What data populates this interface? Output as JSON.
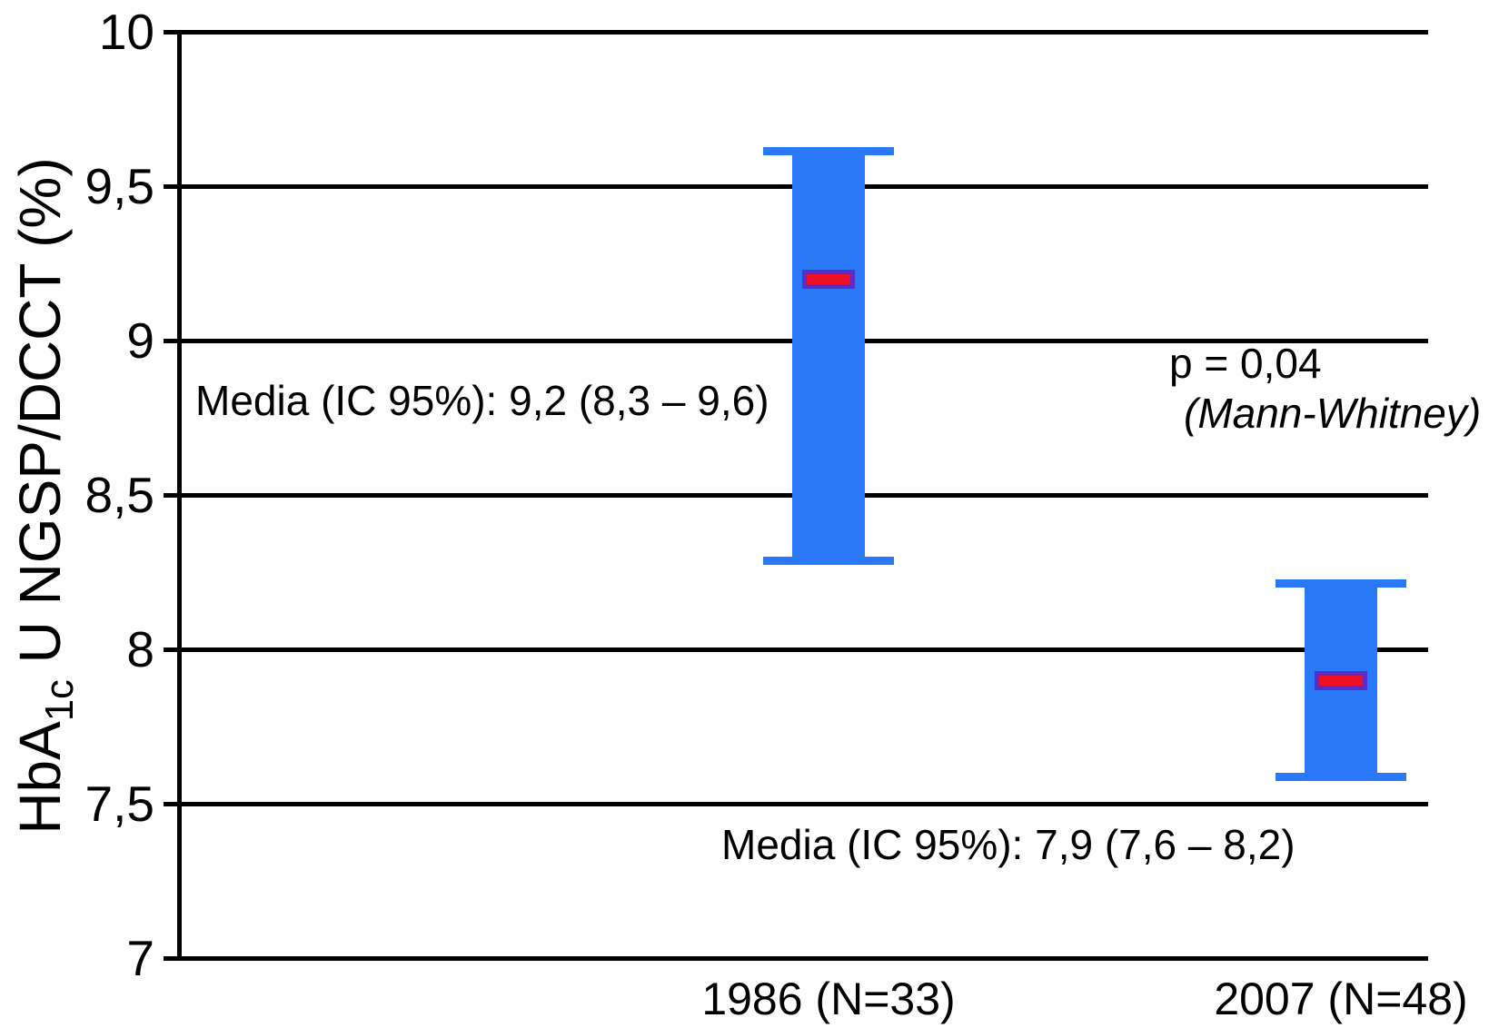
{
  "chart_data": {
    "type": "bar",
    "subtype": "mean-with-95ci-interval-bars",
    "title": "",
    "xlabel": "",
    "ylabel_text": "HbA1c U NGSP/DCCT (%)",
    "ylabel_parts": {
      "prefix": "HbA",
      "subscript": "1c",
      "suffix": " U NGSP/DCCT (%)"
    },
    "ylim": [
      7,
      10
    ],
    "grid": true,
    "legend_position": "none",
    "yticks": [
      {
        "label": "10",
        "value": 10
      },
      {
        "label": "9,5",
        "value": 9.5
      },
      {
        "label": "9",
        "value": 9
      },
      {
        "label": "8,5",
        "value": 8.5
      },
      {
        "label": "8",
        "value": 8
      },
      {
        "label": "7,5",
        "value": 7.5
      },
      {
        "label": "7",
        "value": 7
      }
    ],
    "categories": [
      "1986 (N=33)",
      "2007 (N=48)"
    ],
    "points": [
      {
        "category": "1986 (N=33)",
        "year": "1986",
        "n": 33,
        "mean": 9.2,
        "ci_low": 8.3,
        "ci_high": 9.6,
        "annotation": "Media (IC 95%): 9,2 (8,3 – 9,6)"
      },
      {
        "category": "2007 (N=48)",
        "year": "2007",
        "n": 48,
        "mean": 7.9,
        "ci_low": 7.6,
        "ci_high": 8.2,
        "annotation": "Media (IC 95%): 7,9 (7,6 – 8,2)"
      }
    ],
    "stats": {
      "p_label": "p = 0,04",
      "test_label": "(Mann-Whitney)"
    },
    "colors": {
      "bar": "#2878F8",
      "mean_marker": "#EE1123",
      "mean_marker_border": "#5A2DC8",
      "axis": "#000000",
      "text": "#000000",
      "background": "#ffffff"
    }
  }
}
